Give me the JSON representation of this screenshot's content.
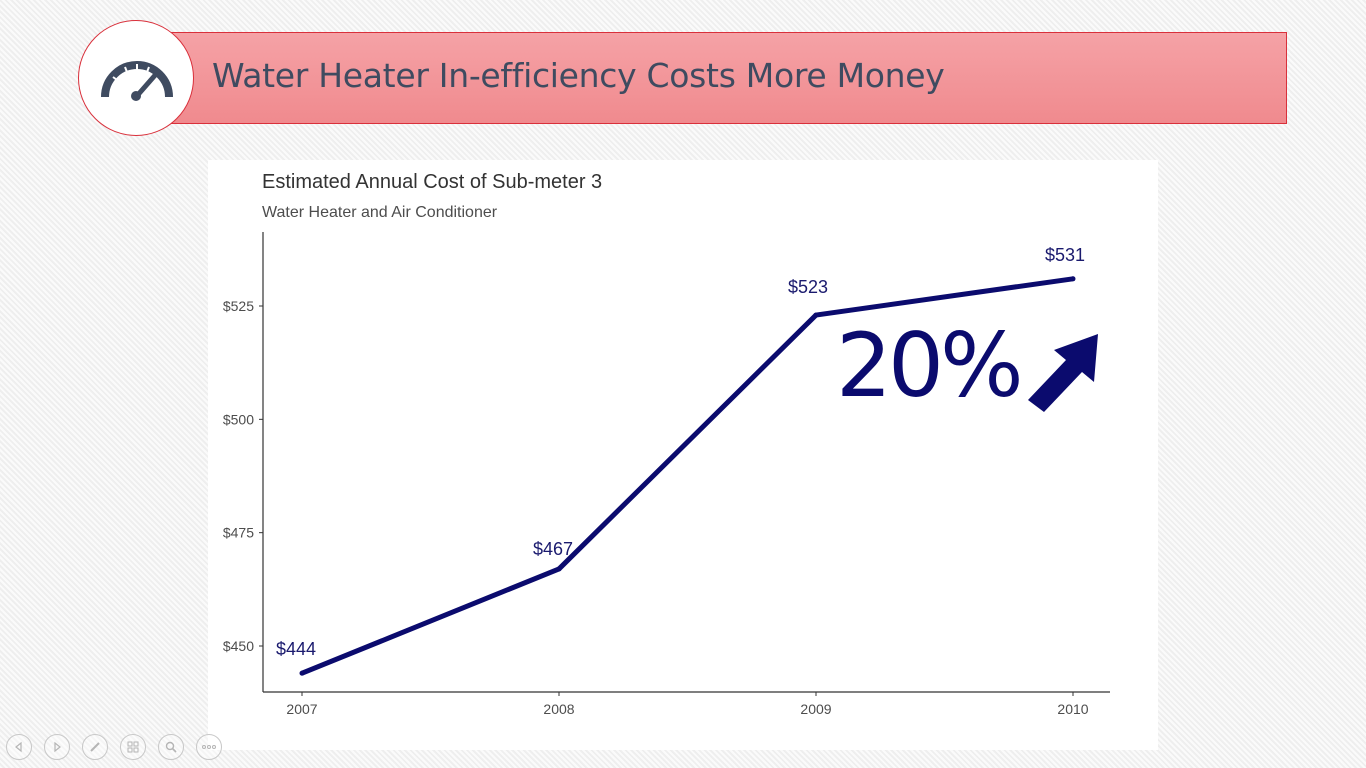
{
  "slide": {
    "title": "Water Heater In-efficiency Costs More Money",
    "icon": "speedometer-icon",
    "accent_color": "#f08a8e",
    "border_color": "#d9303b",
    "highlight": {
      "text": "20%",
      "icon": "up-right-arrow-icon",
      "color": "#0b0b6e"
    }
  },
  "chart_data": {
    "type": "line",
    "title": "Estimated Annual Cost of Sub-meter 3",
    "subtitle": "Water Heater and Air Conditioner",
    "xlabel": "",
    "ylabel": "",
    "x": [
      "2007",
      "2008",
      "2009",
      "2010"
    ],
    "series": [
      {
        "values": [
          444,
          467,
          523,
          531
        ],
        "color": "#0b0b6e"
      }
    ],
    "data_labels": [
      "$444",
      "$467",
      "$523",
      "$531"
    ],
    "y_ticks": [
      450,
      475,
      500,
      525
    ],
    "y_tick_labels": [
      "$450",
      "$475",
      "$500",
      "$525"
    ],
    "ylim": [
      440,
      540
    ],
    "grid": false,
    "legend": "none"
  },
  "nav_controls": [
    {
      "icon": "previous-arrow-icon"
    },
    {
      "icon": "next-arrow-icon"
    },
    {
      "icon": "pen-icon"
    },
    {
      "icon": "slides-grid-icon"
    },
    {
      "icon": "zoom-icon"
    },
    {
      "icon": "more-options-icon"
    }
  ]
}
